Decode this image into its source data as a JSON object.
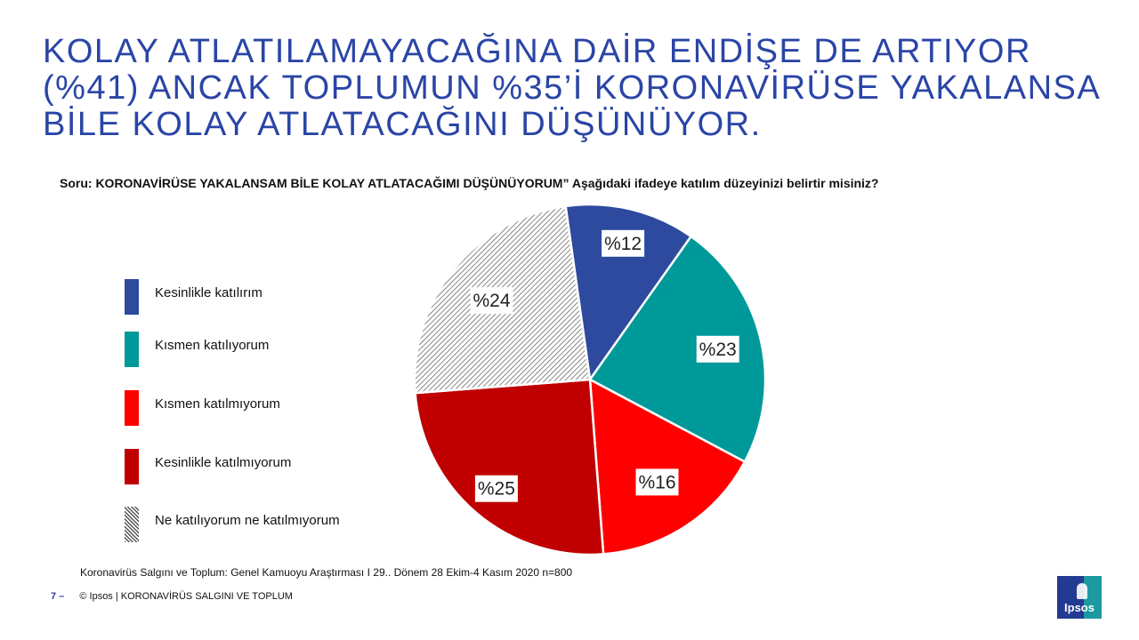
{
  "title": {
    "lines": [
      "KOLAY ATLATILAMAYACAĞINA DAİR ENDİŞE DE ARTIYOR",
      "(%41) ANCAK TOPLUMUN %35’İ KORONAVİRÜSE YAKALANSA",
      "BİLE KOLAY ATLATACAĞINI DÜŞÜNÜYOR."
    ]
  },
  "question": "Soru:  KORONAVİRÜSE YAKALANSAM BİLE KOLAY ATLATACAĞIMI DÜŞÜNÜYORUM” Aşağıdaki ifadeye katılım düzeyinizi belirtir misiniz?",
  "chart_data": {
    "type": "pie",
    "start_angle_deg": -8,
    "slices": [
      {
        "label": "Kesinlikle  katılırım",
        "value": 12,
        "display": "%12",
        "color": "#2e4a9e",
        "pattern": false
      },
      {
        "label": "Kısmen  katılıyorum",
        "value": 23,
        "display": "%23",
        "color": "#009999",
        "pattern": false
      },
      {
        "label": "Kısmen  katılmıyorum",
        "value": 16,
        "display": "%16",
        "color": "#ff0000",
        "pattern": false
      },
      {
        "label": "Kesinlikle  katılmıyorum",
        "value": 25,
        "display": "%25",
        "color": "#c00000",
        "pattern": false
      },
      {
        "label": "Ne katılıyorum  ne katılmıyorum",
        "value": 24,
        "display": "%24",
        "color": "#ffffff",
        "pattern": true
      }
    ]
  },
  "source": "Koronavirüs  Salgını ve Toplum:  Genel Kamuoyu Araştırması  I  29.. Dönem 28 Ekim-4 Kasım 2020   n=800",
  "footer": {
    "page_number": "7 –",
    "text": "© Ipsos | KORONAVİRÜS SALGINI VE TOPLUM"
  },
  "logo": {
    "text": "Ipsos"
  }
}
